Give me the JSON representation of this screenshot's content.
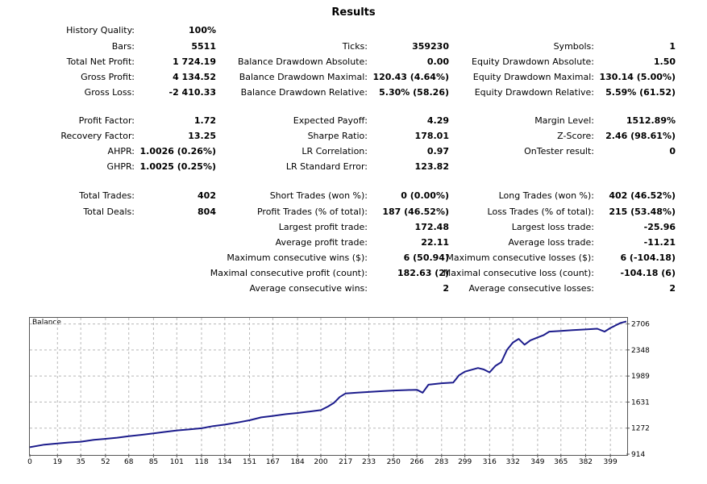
{
  "title": "Results",
  "rows": [
    [
      [
        "History Quality:",
        "100%"
      ],
      null,
      null
    ],
    [
      [
        "Bars:",
        "5511"
      ],
      [
        "Ticks:",
        "359230"
      ],
      [
        "Symbols:",
        "1"
      ]
    ],
    [
      [
        "Total Net Profit:",
        "1 724.19"
      ],
      [
        "Balance Drawdown Absolute:",
        "0.00"
      ],
      [
        "Equity Drawdown Absolute:",
        "1.50"
      ]
    ],
    [
      [
        "Gross Profit:",
        "4 134.52"
      ],
      [
        "Balance Drawdown Maximal:",
        "120.43 (4.64%)"
      ],
      [
        "Equity Drawdown Maximal:",
        "130.14 (5.00%)"
      ]
    ],
    [
      [
        "Gross Loss:",
        "-2 410.33"
      ],
      [
        "Balance Drawdown Relative:",
        "5.30% (58.26)"
      ],
      [
        "Equity Drawdown Relative:",
        "5.59% (61.52)"
      ]
    ],
    null,
    [
      [
        "Profit Factor:",
        "1.72"
      ],
      [
        "Expected Payoff:",
        "4.29"
      ],
      [
        "Margin Level:",
        "1512.89%"
      ]
    ],
    [
      [
        "Recovery Factor:",
        "13.25"
      ],
      [
        "Sharpe Ratio:",
        "178.01"
      ],
      [
        "Z-Score:",
        "2.46 (98.61%)"
      ]
    ],
    [
      [
        "AHPR:",
        "1.0026 (0.26%)"
      ],
      [
        "LR Correlation:",
        "0.97"
      ],
      [
        "OnTester result:",
        "0"
      ]
    ],
    [
      [
        "GHPR:",
        "1.0025 (0.25%)"
      ],
      [
        "LR Standard Error:",
        "123.82"
      ],
      null
    ],
    null,
    [
      [
        "Total Trades:",
        "402"
      ],
      [
        "Short Trades (won %):",
        "0 (0.00%)"
      ],
      [
        "Long Trades (won %):",
        "402 (46.52%)"
      ]
    ],
    [
      [
        "Total Deals:",
        "804"
      ],
      [
        "Profit Trades (% of total):",
        "187 (46.52%)"
      ],
      [
        "Loss Trades (% of total):",
        "215 (53.48%)"
      ]
    ],
    [
      null,
      [
        "Largest profit trade:",
        "172.48"
      ],
      [
        "Largest loss trade:",
        "-25.96"
      ]
    ],
    [
      null,
      [
        "Average profit trade:",
        "22.11"
      ],
      [
        "Average loss trade:",
        "-11.21"
      ]
    ],
    [
      null,
      [
        "Maximum consecutive wins ($):",
        "6 (50.94)"
      ],
      [
        "Maximum consecutive losses ($):",
        "6 (-104.18)"
      ]
    ],
    [
      null,
      [
        "Maximal consecutive profit (count):",
        "182.63 (2)"
      ],
      [
        "Maximal consecutive loss (count):",
        "-104.18 (6)"
      ]
    ],
    [
      null,
      [
        "Average consecutive wins:",
        "2"
      ],
      [
        "Average consecutive losses:",
        "2"
      ]
    ]
  ],
  "chart_data": {
    "type": "line",
    "title": "Balance",
    "x_ticks": [
      "0",
      "19",
      "35",
      "52",
      "68",
      "85",
      "101",
      "118",
      "134",
      "151",
      "167",
      "184",
      "200",
      "217",
      "233",
      "250",
      "266",
      "283",
      "299",
      "316",
      "332",
      "349",
      "365",
      "382",
      "399"
    ],
    "y_ticks": [
      914,
      1272,
      1631,
      1989,
      2348,
      2706
    ],
    "xlim": [
      0,
      410
    ],
    "ylim": [
      914,
      2790
    ],
    "grid": true,
    "series": [
      {
        "color": "#1c1c8c",
        "x": [
          0,
          10,
          19,
          27,
          35,
          44,
          52,
          60,
          68,
          77,
          85,
          93,
          101,
          110,
          118,
          126,
          134,
          143,
          151,
          159,
          167,
          176,
          184,
          192,
          200,
          205,
          209,
          213,
          217,
          225,
          233,
          241,
          250,
          258,
          266,
          270,
          274,
          283,
          291,
          295,
          299,
          308,
          312,
          316,
          320,
          324,
          328,
          332,
          336,
          340,
          344,
          349,
          353,
          357,
          365,
          373,
          382,
          390,
          395,
          399,
          402,
          406,
          410
        ],
        "y": [
          1010,
          1045,
          1060,
          1075,
          1085,
          1110,
          1125,
          1140,
          1160,
          1180,
          1200,
          1220,
          1240,
          1255,
          1270,
          1300,
          1320,
          1350,
          1380,
          1420,
          1440,
          1465,
          1480,
          1500,
          1520,
          1570,
          1620,
          1700,
          1750,
          1760,
          1770,
          1780,
          1790,
          1795,
          1800,
          1760,
          1870,
          1890,
          1900,
          2000,
          2050,
          2100,
          2080,
          2040,
          2130,
          2180,
          2350,
          2450,
          2500,
          2420,
          2480,
          2520,
          2550,
          2600,
          2610,
          2620,
          2630,
          2640,
          2600,
          2650,
          2680,
          2720,
          2740
        ]
      }
    ]
  }
}
